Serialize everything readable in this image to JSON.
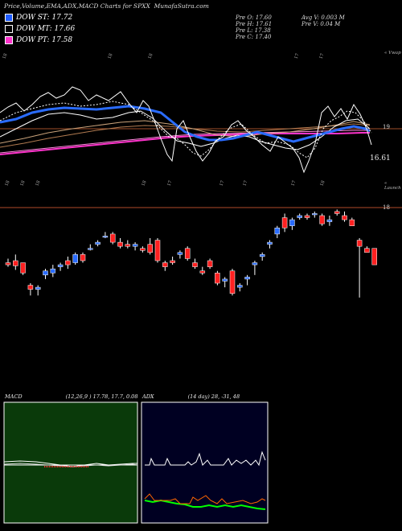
{
  "header": {
    "title": "Price,Volume,EMA,ADX,MACD Charts for SPXX",
    "site": "MunafaSutra.com"
  },
  "legend": [
    {
      "label": "DOW ST: 17.72",
      "color": "#1f5cff"
    },
    {
      "label": "DOW MT: 17.66",
      "color": "#000000"
    },
    {
      "label": "DOW PT: 17.58",
      "color": "#ff33cc"
    }
  ],
  "stats": {
    "col1": [
      "Pre   O: 17.60",
      "Pre   H: 17.61",
      "Pre   L: 17.38",
      "Pre   C: 17.40"
    ],
    "col2": [
      "Avg V: 0.003 M",
      "Pre   V: 0.04  M"
    ]
  },
  "labels": {
    "top_right": "« Vwap",
    "mid_right": "« Launch",
    "ema_level": "19",
    "ema_low": "16.61",
    "price_level": "18"
  },
  "top_ticks": [
    "18",
    "18",
    "18",
    "17",
    "17"
  ],
  "mid_ticks": [
    "18",
    "18",
    "18",
    "18",
    "17",
    "17",
    "17",
    "17",
    "18"
  ],
  "macd_panel": {
    "title": "MACD",
    "params": "(12,26,9 ) 17.78,  17.7,  0.08"
  },
  "adx_panel": {
    "title": "ADX",
    "params": "(14 day) 28, -31, 48"
  },
  "chart_data": {
    "type": "candlestick",
    "candles": [
      {
        "o": 17.62,
        "h": 17.66,
        "l": 17.58,
        "c": 17.6
      },
      {
        "o": 17.64,
        "h": 17.7,
        "l": 17.55,
        "c": 17.59
      },
      {
        "o": 17.62,
        "h": 17.62,
        "l": 17.5,
        "c": 17.52
      },
      {
        "o": 17.4,
        "h": 17.42,
        "l": 17.3,
        "c": 17.36
      },
      {
        "o": 17.36,
        "h": 17.4,
        "l": 17.3,
        "c": 17.38
      },
      {
        "o": 17.5,
        "h": 17.56,
        "l": 17.46,
        "c": 17.54
      },
      {
        "o": 17.52,
        "h": 17.6,
        "l": 17.48,
        "c": 17.56
      },
      {
        "o": 17.58,
        "h": 17.62,
        "l": 17.54,
        "c": 17.6
      },
      {
        "o": 17.64,
        "h": 17.68,
        "l": 17.56,
        "c": 17.6
      },
      {
        "o": 17.62,
        "h": 17.72,
        "l": 17.6,
        "c": 17.7
      },
      {
        "o": 17.7,
        "h": 17.72,
        "l": 17.62,
        "c": 17.64
      },
      {
        "o": 17.76,
        "h": 17.8,
        "l": 17.74,
        "c": 17.76
      },
      {
        "o": 17.8,
        "h": 17.84,
        "l": 17.78,
        "c": 17.82
      },
      {
        "o": 17.88,
        "h": 17.92,
        "l": 17.86,
        "c": 17.88
      },
      {
        "o": 17.9,
        "h": 17.92,
        "l": 17.8,
        "c": 17.82
      },
      {
        "o": 17.82,
        "h": 17.86,
        "l": 17.76,
        "c": 17.78
      },
      {
        "o": 17.8,
        "h": 17.84,
        "l": 17.76,
        "c": 17.78
      },
      {
        "o": 17.78,
        "h": 17.82,
        "l": 17.74,
        "c": 17.8
      },
      {
        "o": 17.76,
        "h": 17.78,
        "l": 17.72,
        "c": 17.74
      },
      {
        "o": 17.8,
        "h": 17.86,
        "l": 17.7,
        "c": 17.72
      },
      {
        "o": 17.84,
        "h": 17.86,
        "l": 17.62,
        "c": 17.64
      },
      {
        "o": 17.62,
        "h": 17.64,
        "l": 17.54,
        "c": 17.58
      },
      {
        "o": 17.64,
        "h": 17.68,
        "l": 17.6,
        "c": 17.62
      },
      {
        "o": 17.7,
        "h": 17.74,
        "l": 17.66,
        "c": 17.72
      },
      {
        "o": 17.76,
        "h": 17.78,
        "l": 17.64,
        "c": 17.66
      },
      {
        "o": 17.62,
        "h": 17.66,
        "l": 17.56,
        "c": 17.58
      },
      {
        "o": 17.54,
        "h": 17.58,
        "l": 17.5,
        "c": 17.52
      },
      {
        "o": 17.64,
        "h": 17.66,
        "l": 17.56,
        "c": 17.58
      },
      {
        "o": 17.52,
        "h": 17.54,
        "l": 17.4,
        "c": 17.42
      },
      {
        "o": 17.44,
        "h": 17.48,
        "l": 17.38,
        "c": 17.46
      },
      {
        "o": 17.54,
        "h": 17.56,
        "l": 17.3,
        "c": 17.32
      },
      {
        "o": 17.38,
        "h": 17.42,
        "l": 17.34,
        "c": 17.4
      },
      {
        "o": 17.46,
        "h": 17.5,
        "l": 17.4,
        "c": 17.48
      },
      {
        "o": 17.6,
        "h": 17.64,
        "l": 17.5,
        "c": 17.62
      },
      {
        "o": 17.68,
        "h": 17.72,
        "l": 17.64,
        "c": 17.7
      },
      {
        "o": 17.8,
        "h": 17.84,
        "l": 17.76,
        "c": 17.82
      },
      {
        "o": 17.9,
        "h": 17.98,
        "l": 17.86,
        "c": 17.96
      },
      {
        "o": 18.06,
        "h": 18.1,
        "l": 17.92,
        "c": 17.96
      },
      {
        "o": 17.98,
        "h": 18.06,
        "l": 17.94,
        "c": 18.04
      },
      {
        "o": 18.06,
        "h": 18.1,
        "l": 18.04,
        "c": 18.08
      },
      {
        "o": 18.08,
        "h": 18.1,
        "l": 18.04,
        "c": 18.06
      },
      {
        "o": 18.1,
        "h": 18.12,
        "l": 18.06,
        "c": 18.1
      },
      {
        "o": 18.08,
        "h": 18.1,
        "l": 17.98,
        "c": 18.0
      },
      {
        "o": 18.02,
        "h": 18.08,
        "l": 17.98,
        "c": 18.04
      },
      {
        "o": 18.12,
        "h": 18.14,
        "l": 18.08,
        "c": 18.1
      },
      {
        "o": 18.08,
        "h": 18.12,
        "l": 18.02,
        "c": 18.04
      },
      {
        "o": 18.04,
        "h": 18.06,
        "l": 17.98,
        "c": 17.98
      },
      {
        "o": 17.84,
        "h": 17.86,
        "l": 17.28,
        "c": 17.78
      },
      {
        "o": 17.76,
        "h": 17.78,
        "l": 17.72,
        "c": 17.72
      },
      {
        "o": 17.76,
        "h": 17.76,
        "l": 17.6,
        "c": 17.6
      }
    ],
    "price_range": [
      17.2,
      18.3
    ]
  }
}
